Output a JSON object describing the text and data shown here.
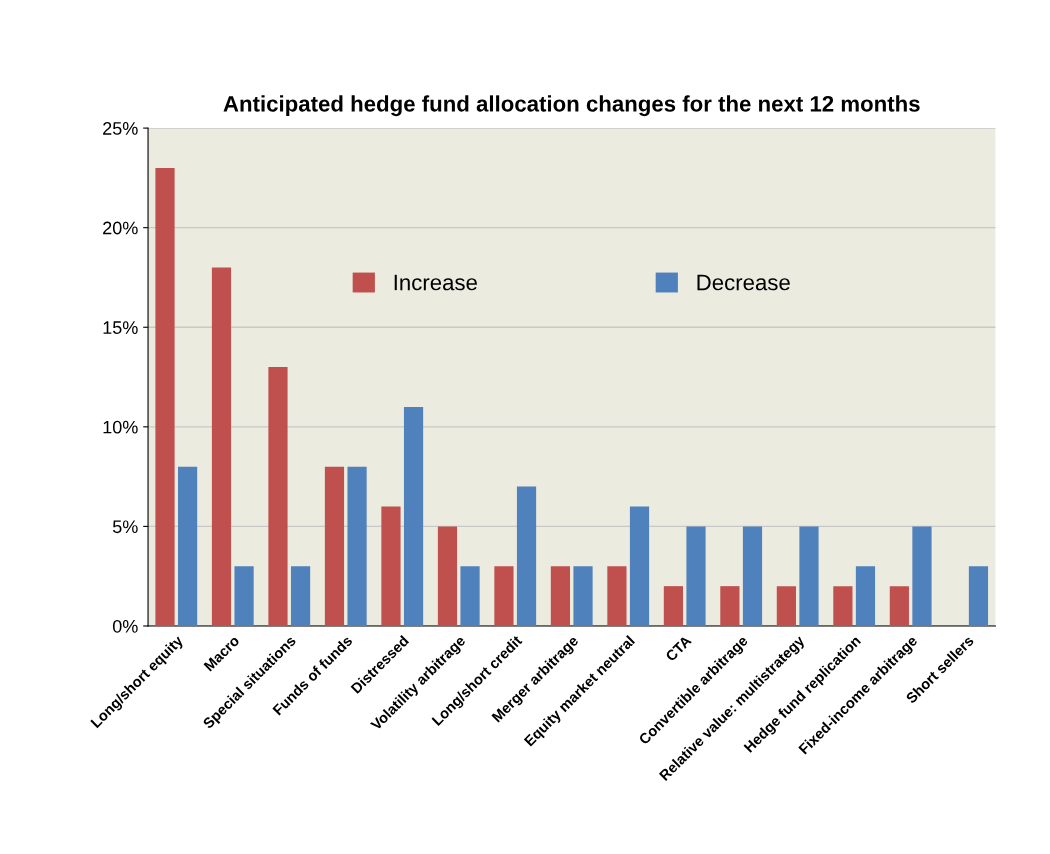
{
  "chart_data": {
    "type": "bar",
    "title": "Anticipated hedge fund allocation changes for the next 12 months",
    "categories": [
      "Long/short equity",
      "Macro",
      "Special situations",
      "Funds of funds",
      "Distressed",
      "Volatility arbitrage",
      "Long/short credit",
      "Merger arbitrage",
      "Equity market neutral",
      "CTA",
      "Convertible arbitrage",
      "Relative value: multistrategy",
      "Hedge fund replication",
      "Fixed-income arbitrage",
      "Short sellers"
    ],
    "series": [
      {
        "name": "Increase",
        "color": "#c0504d",
        "values": [
          23,
          18,
          13,
          8,
          6,
          5,
          3,
          3,
          3,
          2,
          2,
          2,
          2,
          2,
          0
        ]
      },
      {
        "name": "Decrease",
        "color": "#4f81bd",
        "values": [
          8,
          3,
          3,
          8,
          11,
          3,
          7,
          3,
          6,
          5,
          5,
          5,
          3,
          5,
          3
        ]
      }
    ],
    "ylim": [
      0,
      25
    ],
    "yticks": [
      {
        "value": 0,
        "label": "0%"
      },
      {
        "value": 5,
        "label": "5%"
      },
      {
        "value": 10,
        "label": "10%"
      },
      {
        "value": 15,
        "label": "15%"
      },
      {
        "value": 20,
        "label": "20%"
      },
      {
        "value": 25,
        "label": "25%"
      }
    ],
    "grid": "y",
    "legend": "top"
  }
}
